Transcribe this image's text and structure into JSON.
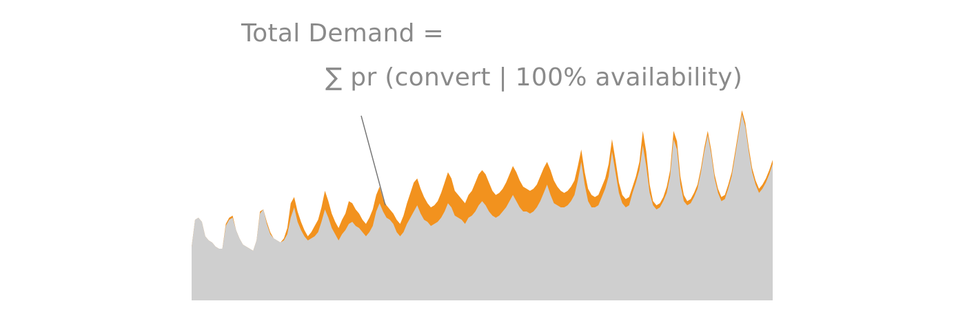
{
  "annotation": {
    "line1": "Total Demand =",
    "line2": "∑ pr (convert | 100% availability)"
  },
  "colors": {
    "background": "#ffffff",
    "base_fill": "#cfcfcf",
    "demand_fill": "#f2921e",
    "text": "#8a8a8a",
    "leader_line": "#777777"
  },
  "chart_data": {
    "type": "area",
    "xlabel": "",
    "ylabel": "",
    "grid": false,
    "legend": "none",
    "ylim": [
      0,
      100
    ],
    "x": [
      0,
      1,
      2,
      3,
      4,
      5,
      6,
      7,
      8,
      9,
      10,
      11,
      12,
      13,
      14,
      15,
      16,
      17,
      18,
      19,
      20,
      21,
      22,
      23,
      24,
      25,
      26,
      27,
      28,
      29,
      30,
      31,
      32,
      33,
      34,
      35,
      36,
      37,
      38,
      39,
      40,
      41,
      42,
      43,
      44,
      45,
      46,
      47,
      48,
      49,
      50,
      51,
      52,
      53,
      54,
      55,
      56,
      57,
      58,
      59,
      60,
      61,
      62,
      63,
      64,
      65,
      66,
      67,
      68,
      69,
      70,
      71,
      72,
      73,
      74,
      75,
      76,
      77,
      78,
      79,
      80,
      81,
      82,
      83,
      84,
      85,
      86,
      87,
      88,
      89,
      90,
      91,
      92,
      93,
      94,
      95,
      96,
      97,
      98,
      99,
      100,
      101,
      102,
      103,
      104,
      105,
      106,
      107,
      108,
      109,
      110,
      111,
      112,
      113,
      114,
      115,
      116,
      117,
      118,
      119,
      120,
      121,
      122,
      123,
      124,
      125,
      126,
      127,
      128,
      129,
      130,
      131,
      132,
      133,
      134,
      135,
      136,
      137,
      138,
      139,
      140,
      141,
      142,
      143,
      144,
      145,
      146,
      147,
      148,
      149,
      150,
      151,
      152,
      153,
      154,
      155,
      156,
      157,
      158,
      159,
      160,
      161,
      162,
      163,
      164,
      165,
      166,
      167,
      168,
      169,
      170
    ],
    "series": [
      {
        "values": [
          26,
          39,
          40,
          38,
          31,
          29,
          28,
          26,
          25,
          25,
          36,
          39,
          40,
          34,
          30,
          27,
          26,
          25,
          24,
          29,
          42,
          44,
          37,
          32,
          30,
          29,
          28,
          29,
          32,
          40,
          45,
          38,
          34,
          31,
          29,
          30,
          31,
          33,
          38,
          44,
          40,
          35,
          32,
          29,
          32,
          34,
          37,
          38,
          36,
          35,
          33,
          31,
          33,
          36,
          43,
          47,
          43,
          40,
          39,
          37,
          33,
          31,
          33,
          37,
          40,
          43,
          46,
          42,
          39,
          38,
          36,
          37,
          38,
          40,
          43,
          47,
          45,
          41,
          40,
          39,
          37,
          40,
          41,
          43,
          46,
          48,
          46,
          43,
          41,
          40,
          41,
          43,
          45,
          48,
          51,
          48,
          45,
          43,
          43,
          42,
          43,
          45,
          48,
          52,
          56,
          51,
          47,
          46,
          45,
          45,
          46,
          48,
          51,
          58,
          67,
          56,
          48,
          45,
          45,
          46,
          50,
          54,
          60,
          72,
          62,
          52,
          47,
          45,
          46,
          52,
          57,
          63,
          75,
          65,
          52,
          46,
          44,
          45,
          48,
          52,
          60,
          78,
          73,
          56,
          48,
          46,
          47,
          50,
          54,
          62,
          72,
          80,
          71,
          59,
          52,
          48,
          49,
          54,
          60,
          70,
          80,
          90,
          84,
          72,
          62,
          56,
          52,
          54,
          57,
          61,
          66
        ]
      },
      {
        "values": [
          26,
          39,
          40,
          38,
          31,
          29,
          28,
          26,
          25,
          25,
          37,
          40,
          41,
          34,
          30,
          27,
          26,
          25,
          24,
          29,
          43,
          44,
          38,
          33,
          30,
          29,
          28,
          30,
          35,
          47,
          50,
          43,
          38,
          34,
          31,
          33,
          36,
          39,
          45,
          53,
          48,
          42,
          38,
          35,
          39,
          42,
          48,
          47,
          44,
          42,
          39,
          37,
          40,
          44,
          51,
          55,
          49,
          46,
          44,
          42,
          39,
          37,
          41,
          47,
          52,
          57,
          59,
          54,
          50,
          47,
          45,
          46,
          48,
          52,
          57,
          62,
          59,
          53,
          51,
          49,
          47,
          51,
          53,
          57,
          61,
          63,
          61,
          57,
          53,
          51,
          52,
          54,
          57,
          61,
          65,
          62,
          58,
          55,
          54,
          53,
          54,
          56,
          60,
          64,
          67,
          63,
          58,
          55,
          53,
          52,
          53,
          55,
          58,
          65,
          73,
          62,
          54,
          51,
          50,
          51,
          55,
          59,
          66,
          78,
          68,
          57,
          51,
          49,
          50,
          55,
          60,
          67,
          82,
          72,
          56,
          48,
          46,
          47,
          50,
          55,
          63,
          82,
          77,
          60,
          51,
          48,
          49,
          52,
          56,
          64,
          74,
          82,
          73,
          61,
          54,
          50,
          51,
          56,
          62,
          72,
          82,
          92,
          86,
          74,
          64,
          58,
          54,
          56,
          59,
          63,
          68
        ]
      }
    ]
  }
}
